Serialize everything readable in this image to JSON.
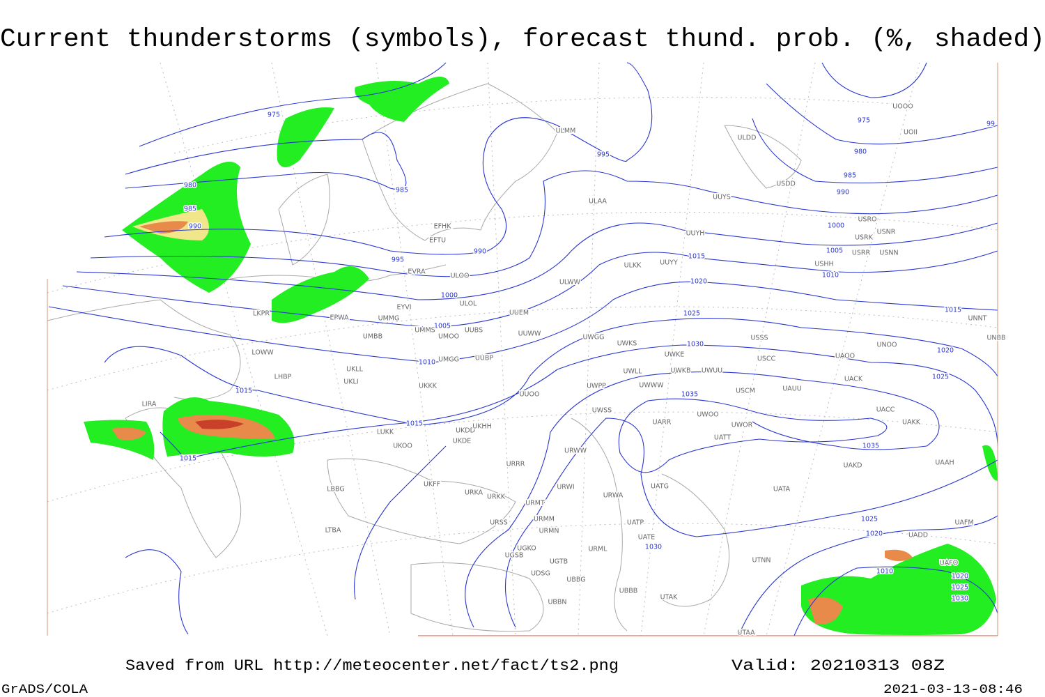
{
  "header": {
    "title": "Current thunderstorms (symbols), forecast thund. prob. (%, shaded)"
  },
  "footer": {
    "source": "Saved from URL http://meteocenter.net/fact/ts2.png",
    "valid": "Valid: 20210313 08Z",
    "software": "GrADS/COLA",
    "timestamp": "2021-03-13-08:46"
  },
  "isobar_labels": [
    975,
    985,
    995,
    990,
    995,
    1000,
    1005,
    1010,
    1015,
    1015,
    1015,
    980,
    985,
    990,
    975,
    980,
    985,
    990,
    1000,
    1005,
    1010,
    1015,
    1020,
    1025,
    1030,
    1035,
    1035,
    1015,
    1020,
    1025,
    1030,
    1025,
    1020,
    1010,
    1020,
    1025,
    1030,
    99
  ],
  "stations": [
    "ULMM",
    "ULDD",
    "USDD",
    "UUYS",
    "ULAA",
    "UUYH",
    "EFHK",
    "EFTU",
    "EVRA",
    "ULOO",
    "ULKK",
    "UUYY",
    "ULWW",
    "EYVI",
    "ULOL",
    "UUEM",
    "EPWA",
    "UMMG",
    "UMMS",
    "UMOO",
    "UUBS",
    "UUWW",
    "UWGG",
    "UWKS",
    "UMBB",
    "UUBP",
    "UMGG",
    "UWKE",
    "UWKB",
    "UWUU",
    "UWLL",
    "UWWW",
    "UWPP",
    "UKLL",
    "UKLI",
    "UKKK",
    "UUOO",
    "USSS",
    "USCC",
    "USCM",
    "UAUU",
    "UACK",
    "UACC",
    "UAKK",
    "UARR",
    "UWOO",
    "UWOR",
    "UATT",
    "UAKD",
    "UWSS",
    "LIRA",
    "LHBP",
    "LOWW",
    "LKPR",
    "LUKK",
    "UKOO",
    "UKDD",
    "UKHH",
    "UKDE",
    "URWW",
    "URRR",
    "UKFF",
    "URKA",
    "URKK",
    "URWI",
    "URWA",
    "UATG",
    "UATA",
    "URMT",
    "URMM",
    "URSS",
    "URMN",
    "UATP",
    "UATE",
    "URML",
    "UGKO",
    "UGSB",
    "UGTB",
    "UDSG",
    "UBBG",
    "UBBB",
    "UBBN",
    "UTAK",
    "UTNN",
    "UTAA",
    "LTBA",
    "LBBG",
    "UNNT",
    "UNBB",
    "UNOO",
    "UAOO",
    "UAAH",
    "UAFM",
    "UADD",
    "UAFO",
    "USHH",
    "USRR",
    "USNN",
    "USRK",
    "USNR",
    "USRO",
    "UOOO",
    "UOII"
  ]
}
